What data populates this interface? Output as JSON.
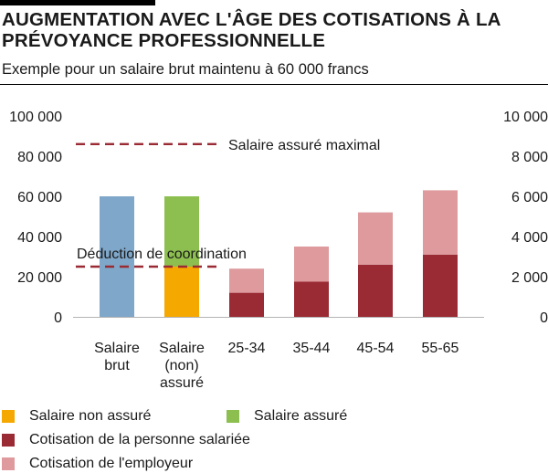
{
  "header": {
    "title": "AUGMENTATION AVEC L'ÂGE DES COTISATIONS À LA PRÉVOYANCE PROFESSIONNELLE",
    "subtitle": "Exemple pour un salaire brut maintenu à 60 000 francs"
  },
  "chart_data": {
    "type": "bar",
    "stacked": true,
    "title": "AUGMENTATION AVEC L'ÂGE DES COTISATIONS À LA PRÉVOYANCE PROFESSIONNELLE",
    "subtitle": "Exemple pour un salaire brut maintenu à 60 000 francs",
    "categories": [
      [
        "Salaire",
        "brut"
      ],
      [
        "Salaire",
        "(non)",
        "assuré"
      ],
      [
        "25-34"
      ],
      [
        "35-44"
      ],
      [
        "45-54"
      ],
      [
        "55-65"
      ]
    ],
    "left_axis": {
      "ylim": [
        0,
        100000
      ],
      "ticks": [
        "0",
        "20 000",
        "40 000",
        "60 000",
        "80 000",
        "100 000"
      ]
    },
    "right_axis": {
      "ylim": [
        0,
        10000
      ],
      "ticks": [
        "0",
        "2 000",
        "4 000",
        "6 000",
        "8 000",
        "10 000"
      ]
    },
    "grid": false,
    "series": [
      {
        "key": "brut",
        "axis": "left",
        "color": "#7fa7c9",
        "values": [
          60000,
          null,
          null,
          null,
          null,
          null
        ]
      },
      {
        "key": "non_assure",
        "axis": "left",
        "color": "#f5a800",
        "values": [
          null,
          25000,
          null,
          null,
          null,
          null
        ]
      },
      {
        "key": "assure",
        "axis": "left",
        "color": "#8cbf4f",
        "values": [
          null,
          35000,
          null,
          null,
          null,
          null
        ]
      },
      {
        "key": "salarie",
        "axis": "right",
        "color": "#9a2a33",
        "values": [
          null,
          null,
          1200,
          1750,
          2600,
          3100
        ]
      },
      {
        "key": "employeur",
        "axis": "right",
        "color": "#de9a9d",
        "values": [
          null,
          null,
          1200,
          1750,
          2600,
          3200
        ]
      }
    ],
    "reference_lines": [
      {
        "label": "Salaire assuré maximal",
        "value": 86000,
        "axis": "left",
        "color": "#9a2a33",
        "style": "dashed"
      },
      {
        "label": "Déduction de coordination",
        "value": 25000,
        "axis": "left",
        "color": "#9a2a33",
        "style": "dashed"
      }
    ],
    "legend_position": "bottom",
    "legend": [
      {
        "label": "Salaire non assuré",
        "color": "#f5a800"
      },
      {
        "label": "Salaire assuré",
        "color": "#8cbf4f"
      },
      {
        "label": "Cotisation de la personne salariée",
        "color": "#9a2a33"
      },
      {
        "label": "Cotisation de l'employeur",
        "color": "#de9a9d"
      }
    ]
  }
}
